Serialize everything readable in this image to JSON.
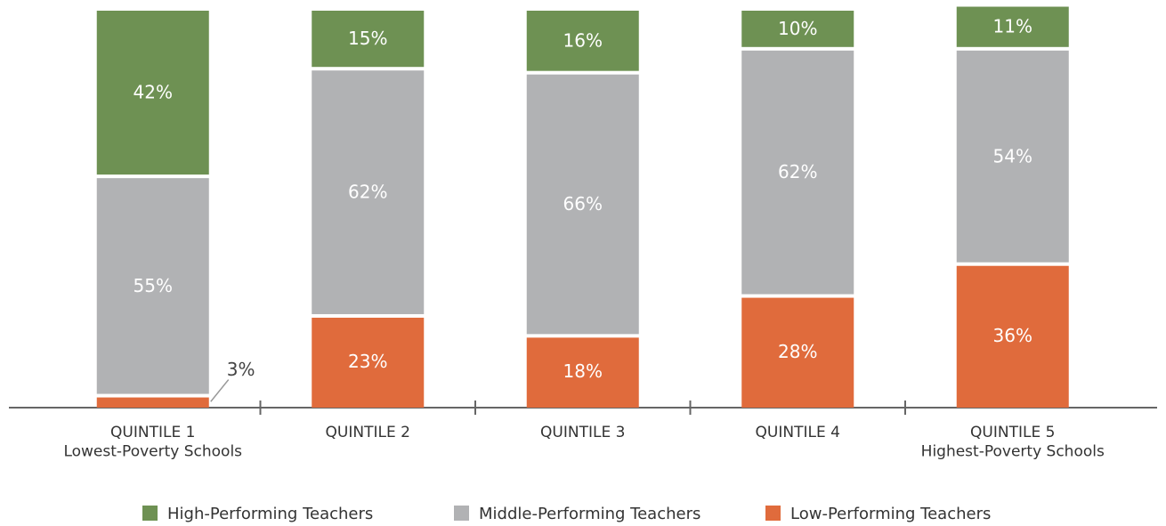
{
  "chart_data": {
    "type": "stacked_bar",
    "categories": [
      "QUINTILE 1\nLowest-Poverty Schools",
      "QUINTILE 2",
      "QUINTILE 3",
      "QUINTILE 4",
      "QUINTILE 5\nHighest-Poverty Schools"
    ],
    "series": [
      {
        "name": "High-Performing Teachers",
        "color": "#6e9153",
        "values": [
          42,
          15,
          16,
          10,
          11
        ],
        "value_labels": [
          "42%",
          "15%",
          "16%",
          "10%",
          "11%"
        ]
      },
      {
        "name": "Middle-Performing Teachers",
        "color": "#b1b2b4",
        "values": [
          55,
          62,
          66,
          62,
          54
        ],
        "value_labels": [
          "55%",
          "62%",
          "66%",
          "62%",
          "54%"
        ]
      },
      {
        "name": "Low-Performing Teachers",
        "color": "#e06b3c",
        "values": [
          3,
          23,
          18,
          28,
          36
        ],
        "value_labels": [
          "3%",
          "23%",
          "18%",
          "28%",
          "36%"
        ]
      }
    ],
    "ylim": [
      0,
      100
    ]
  }
}
